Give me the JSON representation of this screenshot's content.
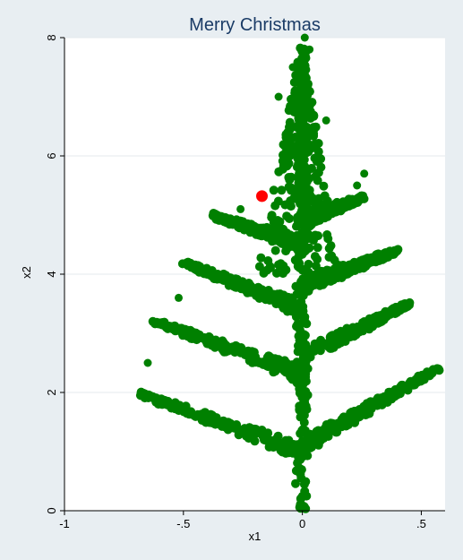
{
  "chart_data": {
    "type": "scatter",
    "title": "Merry Christmas",
    "xlabel": "x1",
    "ylabel": "x2",
    "xlim": [
      -1,
      0.6
    ],
    "ylim": [
      0,
      8
    ],
    "x_ticks": [
      -1,
      -0.5,
      0,
      0.5
    ],
    "x_tick_labels": [
      "-1",
      "-.5",
      "0",
      ".5"
    ],
    "y_ticks": [
      0,
      2,
      4,
      6,
      8
    ],
    "y_tick_labels": [
      "0",
      "2",
      "4",
      "6",
      "8"
    ],
    "grid": "horizontal",
    "series": [
      {
        "color": "#008000",
        "description": "fractal fern/tree point cloud",
        "shape": {
          "trunk": [
            [
              0.0,
              0.0
            ],
            [
              0.0,
              8.0
            ]
          ],
          "branches": [
            {
              "start": [
                0.0,
                1.0
              ],
              "end": [
                -0.7,
                2.0
              ]
            },
            {
              "start": [
                0.0,
                1.1
              ],
              "end": [
                0.57,
                2.4
              ]
            },
            {
              "start": [
                0.0,
                2.3
              ],
              "end": [
                -0.62,
                3.2
              ]
            },
            {
              "start": [
                0.0,
                2.6
              ],
              "end": [
                0.45,
                3.5
              ]
            },
            {
              "start": [
                0.0,
                3.4
              ],
              "end": [
                -0.5,
                4.2
              ]
            },
            {
              "start": [
                0.0,
                3.8
              ],
              "end": [
                0.4,
                4.4
              ]
            },
            {
              "start": [
                0.0,
                4.5
              ],
              "end": [
                -0.38,
                5.0
              ]
            },
            {
              "start": [
                0.0,
                4.9
              ],
              "end": [
                0.25,
                5.3
              ]
            }
          ]
        }
      },
      {
        "color": "#ff0000",
        "points": [
          [
            -0.17,
            5.32
          ]
        ]
      }
    ]
  }
}
